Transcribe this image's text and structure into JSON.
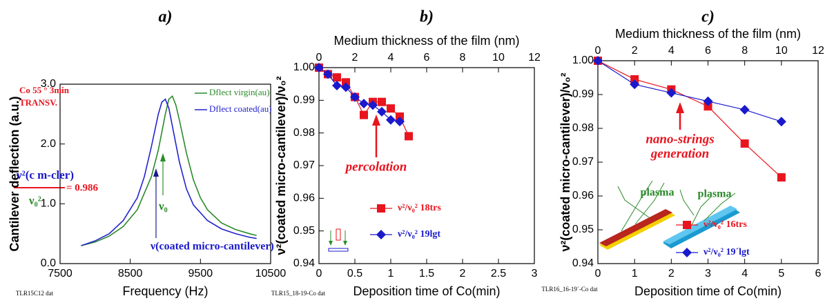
{
  "chart_data": [
    {
      "type": "line",
      "panel_label": "a)",
      "xlabel": "Frequency (Hz)",
      "ylabel": "Cantilever deflection (a.u.)",
      "xlim": [
        7500,
        10500
      ],
      "xticks": [
        7500,
        8500,
        9500,
        10500
      ],
      "ylim": [
        0,
        3
      ],
      "yticks": [
        {
          "value": 0,
          "label": "0.0"
        },
        {
          "value": 1,
          "label": "1.0"
        },
        {
          "value": 2,
          "label": "2.0"
        },
        {
          "value": 3,
          "label": "3.0"
        }
      ],
      "series": [
        {
          "name": "Dflect virgin(au)",
          "color": "#2a8a2a",
          "x": [
            7800,
            8000,
            8200,
            8400,
            8600,
            8800,
            8900,
            9000,
            9050,
            9100,
            9150,
            9200,
            9300,
            9400,
            9500,
            9600,
            9800,
            10000,
            10200,
            10300
          ],
          "values": [
            0.3,
            0.36,
            0.46,
            0.62,
            0.9,
            1.45,
            1.9,
            2.5,
            2.75,
            2.8,
            2.65,
            2.4,
            1.85,
            1.4,
            1.1,
            0.9,
            0.68,
            0.57,
            0.5,
            0.47
          ]
        },
        {
          "name": "Dflect coated(au)",
          "color": "#2222cc",
          "x": [
            7800,
            8000,
            8200,
            8400,
            8600,
            8700,
            8800,
            8900,
            8950,
            9000,
            9050,
            9100,
            9200,
            9300,
            9400,
            9600,
            9800,
            10000,
            10200,
            10300
          ],
          "values": [
            0.3,
            0.38,
            0.5,
            0.72,
            1.1,
            1.45,
            1.95,
            2.5,
            2.7,
            2.75,
            2.6,
            2.3,
            1.7,
            1.25,
            0.98,
            0.72,
            0.58,
            0.5,
            0.44,
            0.42
          ]
        }
      ],
      "annotations": [
        "Co 55 ° 3min",
        "TRANSV.",
        "ν²(c m-cler)",
        "ν₀²",
        "= 0.986",
        "ν₀",
        "ν(coated micro-cantilever)"
      ],
      "file_label": "TLR15C12 dat"
    },
    {
      "type": "line",
      "panel_label": "b)",
      "xlabel": "Deposition time of Co(min)",
      "x2label": "Medium thickness of the film (nm)",
      "ylabel": "ν²(coated micro-cantilever)/ν₀²",
      "xlim": [
        0,
        3
      ],
      "xticks": [
        0,
        0.5,
        1,
        1.5,
        2,
        2.5,
        3
      ],
      "x2lim": [
        0,
        12
      ],
      "x2ticks": [
        0,
        2,
        4,
        6,
        8,
        10,
        12
      ],
      "ylim": [
        0.94,
        1
      ],
      "yticks": [
        0.94,
        0.95,
        0.96,
        0.97,
        0.98,
        0.99,
        {
          "value": 1,
          "label": "1.00"
        }
      ],
      "series": [
        {
          "name": "ν²/ν₀² 18trs",
          "color": "#e8141e",
          "marker": "square",
          "x": [
            0,
            0.125,
            0.25,
            0.375,
            0.5,
            0.625,
            0.75,
            0.875,
            1,
            1.125,
            1.25
          ],
          "values": [
            1,
            0.998,
            0.997,
            0.9955,
            0.991,
            0.9855,
            0.9895,
            0.9895,
            0.9875,
            0.985,
            0.979
          ]
        },
        {
          "name": "ν²/ν₀² 19lgt",
          "color": "#1a1acc",
          "marker": "diamond",
          "x": [
            0,
            0.125,
            0.25,
            0.375,
            0.5,
            0.625,
            0.75,
            0.875,
            1,
            1.125
          ],
          "values": [
            1,
            0.998,
            0.9945,
            0.994,
            0.991,
            0.989,
            0.9885,
            0.9865,
            0.984,
            0.9835
          ]
        }
      ],
      "annotations": [
        "percolation"
      ],
      "file_label": "TLR15_18-19-Co dat"
    },
    {
      "type": "line",
      "panel_label": "c)",
      "xlabel": "Deposition time of Co(min)",
      "x2label": "Medium thickness of the film (nm)",
      "ylabel": "ν²(coated micro-cantilever)/ν₀²",
      "xlim": [
        0,
        6
      ],
      "xticks": [
        0,
        1,
        2,
        3,
        4,
        5,
        6
      ],
      "x2lim": [
        0,
        12
      ],
      "x2ticks": [
        0,
        2,
        4,
        6,
        8,
        10,
        12
      ],
      "ylim": [
        0.94,
        1
      ],
      "yticks": [
        0.94,
        0.95,
        0.96,
        0.97,
        0.98,
        0.99,
        {
          "value": 1,
          "label": "1.00"
        }
      ],
      "series": [
        {
          "name": "ν²/ν₀² 16trs",
          "color": "#e8141e",
          "marker": "square",
          "x": [
            0,
            1,
            2,
            3,
            4,
            5
          ],
          "values": [
            1,
            0.9945,
            0.9915,
            0.9865,
            0.9755,
            0.9655
          ]
        },
        {
          "name": "ν²/ν₀² 19´lgt",
          "color": "#1a1acc",
          "marker": "diamond",
          "x": [
            0,
            1,
            2,
            3,
            4,
            5
          ],
          "values": [
            1,
            0.993,
            0.9905,
            0.988,
            0.9855,
            0.982
          ]
        }
      ],
      "annotations": [
        "nano-strings",
        "generation",
        "plasma",
        "plasma"
      ],
      "file_label": "TLR16_16-19´-Co dat"
    }
  ]
}
